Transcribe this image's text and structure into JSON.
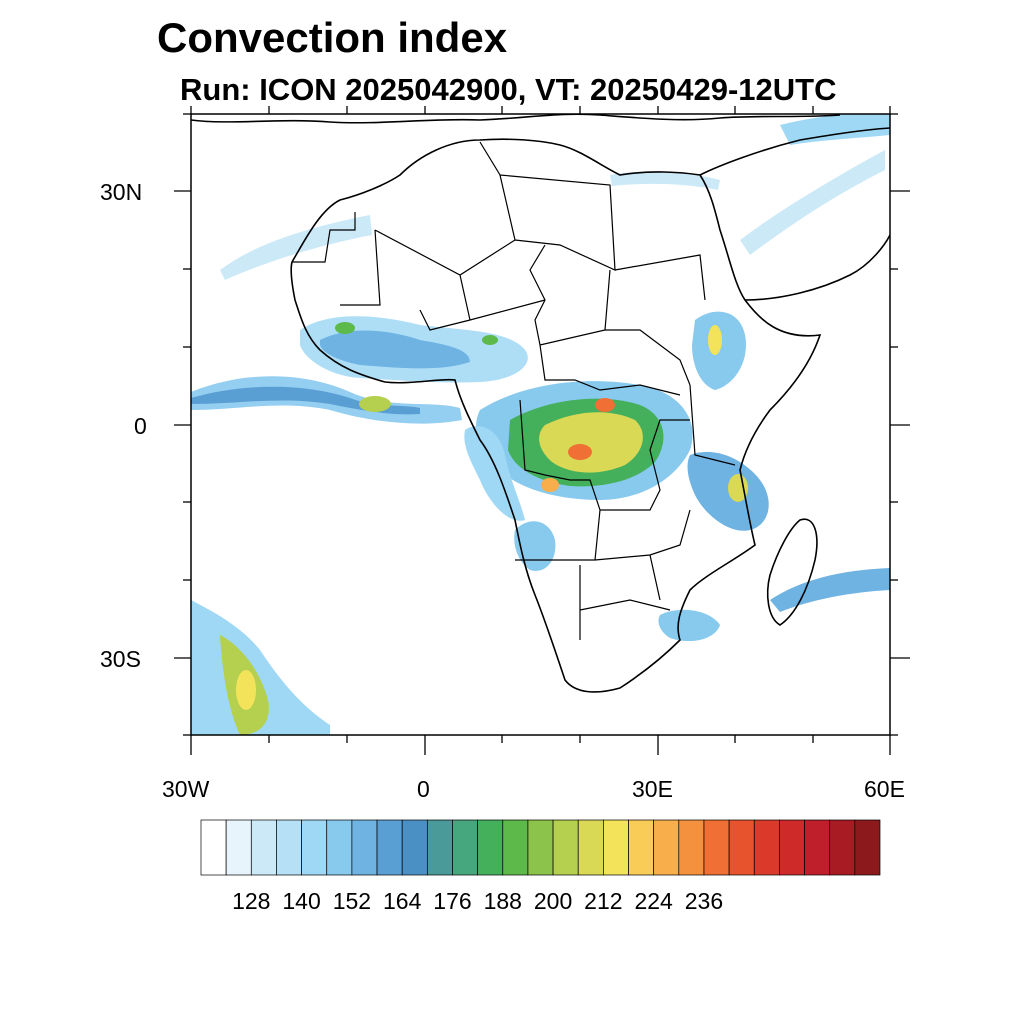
{
  "title": "Convection index",
  "subtitle": "Run: ICON 2025042900,  VT: 20250429-12UTC",
  "axes": {
    "lat_labels": [
      "30N",
      "0",
      "30S"
    ],
    "lon_labels": [
      "30W",
      "0",
      "30E",
      "60E"
    ],
    "lat_range": [
      -40,
      40
    ],
    "lon_range": [
      -30,
      60
    ]
  },
  "colorbar": {
    "labels": [
      "128",
      "140",
      "152",
      "164",
      "176",
      "188",
      "200",
      "212",
      "224",
      "236"
    ],
    "colors": [
      "#ffffff",
      "#e7f4fc",
      "#cce9f8",
      "#b6e0f6",
      "#9fd8f5",
      "#88c9ee",
      "#6fb3e3",
      "#5a9fd4",
      "#4b90c4",
      "#4a9a9a",
      "#46a67e",
      "#45b05c",
      "#5cb94a",
      "#8cc34b",
      "#b4d04e",
      "#dad955",
      "#f2e35b",
      "#f8cc57",
      "#f7ae4b",
      "#f4913f",
      "#ef6f34",
      "#e6532d",
      "#db3a2a",
      "#cf2a2a",
      "#bf1f2a",
      "#a81b23",
      "#8c1a1d"
    ],
    "extent": "both"
  }
}
